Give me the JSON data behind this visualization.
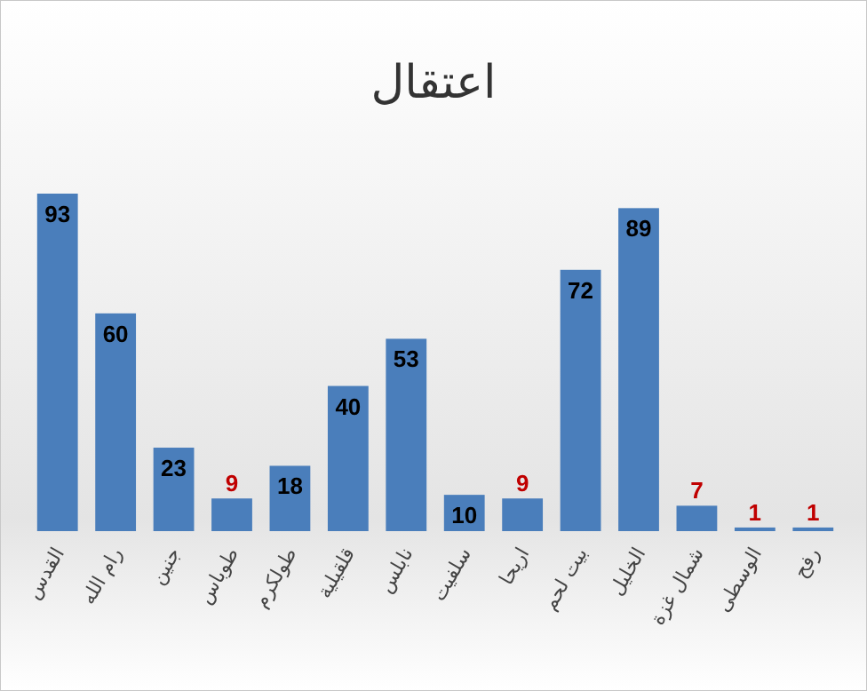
{
  "chart_data": {
    "type": "bar",
    "title": "اعتقال",
    "categories": [
      "القدس",
      "رام الله",
      "جنين",
      "طوباس",
      "طولكرم",
      "قلقيلية",
      "نابلس",
      "سلفيت",
      "اريحا",
      "بيت لحم",
      "الخليل",
      "شمال غزة",
      "الوسطى",
      "رفح"
    ],
    "values": [
      93,
      60,
      23,
      9,
      18,
      40,
      53,
      10,
      9,
      72,
      89,
      7,
      1,
      1
    ],
    "color": "#4a7ebb",
    "data_labels": true
  }
}
